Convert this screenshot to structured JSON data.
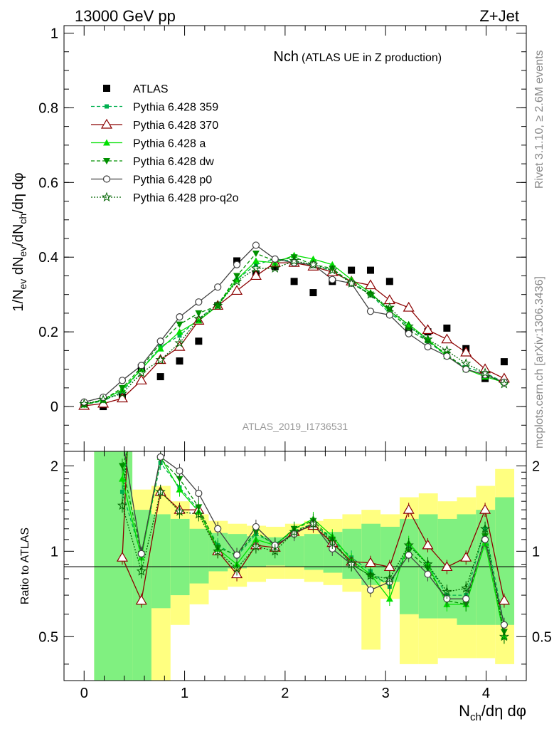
{
  "header": {
    "left": "13000 GeV pp",
    "right": "Z+Jet"
  },
  "side_labels": {
    "top": "Rivet 3.1.10, ≥ 2.6M events",
    "bottom": "mcplots.cern.ch [arXiv:1306.3436]"
  },
  "colors": {
    "atlas": "#000000",
    "p359": "#00b050",
    "p370": "#8b0000",
    "pa": "#00e000",
    "pdw": "#009000",
    "pp0": "#404040",
    "pq2o": "#006400",
    "band_syst": "#ffff80",
    "band_stat": "#80f080"
  },
  "chart_data": [
    {
      "type": "line",
      "panel": "main",
      "title": "Nch",
      "subtitle": "(ATLAS UE in Z production)",
      "ylabel": "1/N_ev dN_ev/dN_ch/dη dφ",
      "watermark": "ATLAS_2019_I1736531",
      "xlim": [
        -0.2,
        4.4
      ],
      "ylim": [
        -0.12,
        1.02
      ],
      "yticks": [
        "0",
        "0.2",
        "0.4",
        "0.6",
        "0.8",
        "1"
      ],
      "x": [
        0.0,
        0.19,
        0.38,
        0.57,
        0.76,
        0.95,
        1.14,
        1.33,
        1.52,
        1.71,
        1.9,
        2.09,
        2.28,
        2.47,
        2.66,
        2.85,
        3.04,
        3.23,
        3.42,
        3.61,
        3.8,
        3.99,
        4.18
      ],
      "series": [
        {
          "name": "ATLAS",
          "key": "atlas",
          "values": [
            0.005,
            0.0,
            0.025,
            0.105,
            0.08,
            0.122,
            0.175,
            0.27,
            0.39,
            0.355,
            0.375,
            0.335,
            0.305,
            0.335,
            0.365,
            0.365,
            0.335,
            0.205,
            0.2,
            0.21,
            0.155,
            0.075,
            0.12
          ]
        },
        {
          "name": "Pythia 6.428 359",
          "key": "p359",
          "values": [
            0.005,
            0.015,
            0.04,
            0.1,
            0.16,
            0.19,
            0.235,
            0.275,
            0.34,
            0.38,
            0.395,
            0.39,
            0.375,
            0.365,
            0.335,
            0.3,
            0.25,
            0.215,
            0.175,
            0.135,
            0.105,
            0.09,
            0.065
          ]
        },
        {
          "name": "Pythia 6.428 370",
          "key": "p370",
          "values": [
            0.002,
            0.008,
            0.022,
            0.07,
            0.125,
            0.16,
            0.23,
            0.27,
            0.31,
            0.35,
            0.385,
            0.385,
            0.375,
            0.36,
            0.335,
            0.325,
            0.285,
            0.265,
            0.205,
            0.18,
            0.145,
            0.1,
            0.075
          ]
        },
        {
          "name": "Pythia 6.428 a",
          "key": "pa",
          "values": [
            0.005,
            0.018,
            0.045,
            0.1,
            0.155,
            0.2,
            0.23,
            0.27,
            0.34,
            0.39,
            0.385,
            0.405,
            0.395,
            0.38,
            0.34,
            0.305,
            0.255,
            0.22,
            0.18,
            0.135,
            0.1,
            0.08,
            0.065
          ]
        },
        {
          "name": "Pythia 6.428 dw",
          "key": "pdw",
          "values": [
            0.005,
            0.018,
            0.05,
            0.105,
            0.17,
            0.22,
            0.25,
            0.27,
            0.35,
            0.41,
            0.39,
            0.4,
            0.38,
            0.37,
            0.33,
            0.3,
            0.26,
            0.205,
            0.175,
            0.14,
            0.1,
            0.085,
            0.065
          ]
        },
        {
          "name": "Pythia 6.428 p0",
          "key": "pp0",
          "values": [
            0.012,
            0.025,
            0.07,
            0.11,
            0.175,
            0.24,
            0.28,
            0.32,
            0.38,
            0.432,
            0.395,
            0.385,
            0.38,
            0.34,
            0.33,
            0.255,
            0.245,
            0.195,
            0.16,
            0.135,
            0.1,
            0.085,
            0.065
          ]
        },
        {
          "name": "Pythia 6.428 pro-q2o",
          "key": "pq2o",
          "values": [
            0.007,
            0.018,
            0.035,
            0.09,
            0.125,
            0.17,
            0.235,
            0.27,
            0.335,
            0.37,
            0.37,
            0.39,
            0.38,
            0.365,
            0.33,
            0.3,
            0.265,
            0.215,
            0.18,
            0.15,
            0.115,
            0.09,
            0.06
          ]
        }
      ]
    },
    {
      "type": "line",
      "panel": "ratio",
      "ylabel": "Ratio to ATLAS",
      "xlabel": "N_ch/dη dφ",
      "xlim": [
        -0.2,
        4.4
      ],
      "ylim": [
        0.35,
        2.25
      ],
      "yticks": [
        "0.5",
        "1",
        "2"
      ],
      "xticks": [
        "0",
        "1",
        "2",
        "3",
        "4"
      ],
      "x": [
        0.0,
        0.19,
        0.38,
        0.57,
        0.76,
        0.95,
        1.14,
        1.33,
        1.52,
        1.71,
        1.9,
        2.09,
        2.28,
        2.47,
        2.66,
        2.85,
        3.04,
        3.23,
        3.42,
        3.61,
        3.8,
        3.99,
        4.18
      ],
      "bands": [
        {
          "x0": 0.1,
          "x1": 0.48,
          "syst": [
            0.35,
            2.25
          ],
          "stat": [
            0.35,
            2.25
          ]
        },
        {
          "x0": 0.48,
          "x1": 0.67,
          "syst": [
            0.35,
            1.65
          ],
          "stat": [
            0.35,
            1.4
          ]
        },
        {
          "x0": 0.67,
          "x1": 0.86,
          "syst": [
            0.35,
            1.7
          ],
          "stat": [
            0.63,
            1.35
          ]
        },
        {
          "x0": 0.86,
          "x1": 1.05,
          "syst": [
            0.55,
            1.5
          ],
          "stat": [
            0.7,
            1.3
          ]
        },
        {
          "x0": 1.05,
          "x1": 1.24,
          "syst": [
            0.65,
            1.35
          ],
          "stat": [
            0.77,
            1.2
          ]
        },
        {
          "x0": 1.24,
          "x1": 1.43,
          "syst": [
            0.73,
            1.28
          ],
          "stat": [
            0.85,
            1.16
          ]
        },
        {
          "x0": 1.43,
          "x1": 1.62,
          "syst": [
            0.75,
            1.25
          ],
          "stat": [
            0.87,
            1.15
          ]
        },
        {
          "x0": 1.62,
          "x1": 1.81,
          "syst": [
            0.78,
            1.23
          ],
          "stat": [
            0.88,
            1.13
          ]
        },
        {
          "x0": 1.81,
          "x1": 2.0,
          "syst": [
            0.8,
            1.22
          ],
          "stat": [
            0.89,
            1.12
          ]
        },
        {
          "x0": 2.0,
          "x1": 2.19,
          "syst": [
            0.8,
            1.25
          ],
          "stat": [
            0.88,
            1.13
          ]
        },
        {
          "x0": 2.19,
          "x1": 2.38,
          "syst": [
            0.78,
            1.28
          ],
          "stat": [
            0.86,
            1.15
          ]
        },
        {
          "x0": 2.38,
          "x1": 2.57,
          "syst": [
            0.76,
            1.3
          ],
          "stat": [
            0.84,
            1.17
          ]
        },
        {
          "x0": 2.57,
          "x1": 2.76,
          "syst": [
            0.72,
            1.35
          ],
          "stat": [
            0.8,
            1.2
          ]
        },
        {
          "x0": 2.76,
          "x1": 2.95,
          "syst": [
            0.45,
            1.4
          ],
          "stat": [
            0.76,
            1.25
          ]
        },
        {
          "x0": 2.95,
          "x1": 3.14,
          "syst": [
            0.68,
            1.35
          ],
          "stat": [
            0.78,
            1.22
          ]
        },
        {
          "x0": 3.14,
          "x1": 3.33,
          "syst": [
            0.4,
            1.55
          ],
          "stat": [
            0.6,
            1.3
          ]
        },
        {
          "x0": 3.33,
          "x1": 3.52,
          "syst": [
            0.4,
            1.6
          ],
          "stat": [
            0.58,
            1.35
          ]
        },
        {
          "x0": 3.52,
          "x1": 3.71,
          "syst": [
            0.42,
            1.5
          ],
          "stat": [
            0.58,
            1.3
          ]
        },
        {
          "x0": 3.71,
          "x1": 3.9,
          "syst": [
            0.42,
            1.55
          ],
          "stat": [
            0.55,
            1.35
          ]
        },
        {
          "x0": 3.9,
          "x1": 4.09,
          "syst": [
            0.42,
            1.7
          ],
          "stat": [
            0.55,
            1.4
          ]
        },
        {
          "x0": 4.09,
          "x1": 4.28,
          "syst": [
            0.4,
            1.95
          ],
          "stat": [
            0.55,
            1.55
          ]
        }
      ],
      "series": [
        {
          "key": "p359",
          "values": [
            null,
            null,
            1.62,
            0.97,
            2.05,
            1.68,
            1.4,
            1.05,
            0.96,
            1.15,
            1.06,
            1.18,
            1.25,
            1.1,
            0.95,
            0.85,
            0.75,
            1.05,
            0.9,
            0.7,
            0.7,
            1.2,
            0.55
          ]
        },
        {
          "key": "p370",
          "values": [
            null,
            null,
            0.95,
            0.67,
            1.62,
            1.4,
            1.4,
            1.0,
            0.83,
            1.05,
            1.03,
            1.17,
            1.23,
            1.07,
            0.92,
            0.91,
            0.88,
            1.4,
            1.05,
            0.88,
            0.95,
            1.4,
            0.67
          ]
        },
        {
          "key": "pa",
          "values": [
            null,
            null,
            1.8,
            0.95,
            2.15,
            1.65,
            1.38,
            1.02,
            0.9,
            1.1,
            1.05,
            1.2,
            1.3,
            1.13,
            0.93,
            0.83,
            0.68,
            1.07,
            0.9,
            0.65,
            0.65,
            1.07,
            0.5
          ]
        },
        {
          "key": "pdw",
          "values": [
            null,
            null,
            2.0,
            0.98,
            2.12,
            1.8,
            1.43,
            1.03,
            0.97,
            1.17,
            1.05,
            1.2,
            1.28,
            1.1,
            0.9,
            0.82,
            0.77,
            1.0,
            0.87,
            0.67,
            0.65,
            1.13,
            0.52
          ]
        },
        {
          "key": "pp0",
          "values": [
            null,
            null,
            2.5,
            0.98,
            2.15,
            1.92,
            1.6,
            1.2,
            0.97,
            1.22,
            1.05,
            1.15,
            1.25,
            1.02,
            0.9,
            0.73,
            0.78,
            0.97,
            0.83,
            0.68,
            0.68,
            1.1,
            0.55
          ]
        },
        {
          "key": "pq2o",
          "values": [
            null,
            null,
            1.45,
            0.85,
            1.62,
            1.38,
            1.35,
            1.0,
            0.87,
            1.04,
            1.0,
            1.17,
            1.25,
            1.08,
            0.9,
            0.82,
            0.8,
            1.05,
            0.9,
            0.72,
            0.74,
            1.2,
            0.5
          ]
        }
      ]
    }
  ]
}
